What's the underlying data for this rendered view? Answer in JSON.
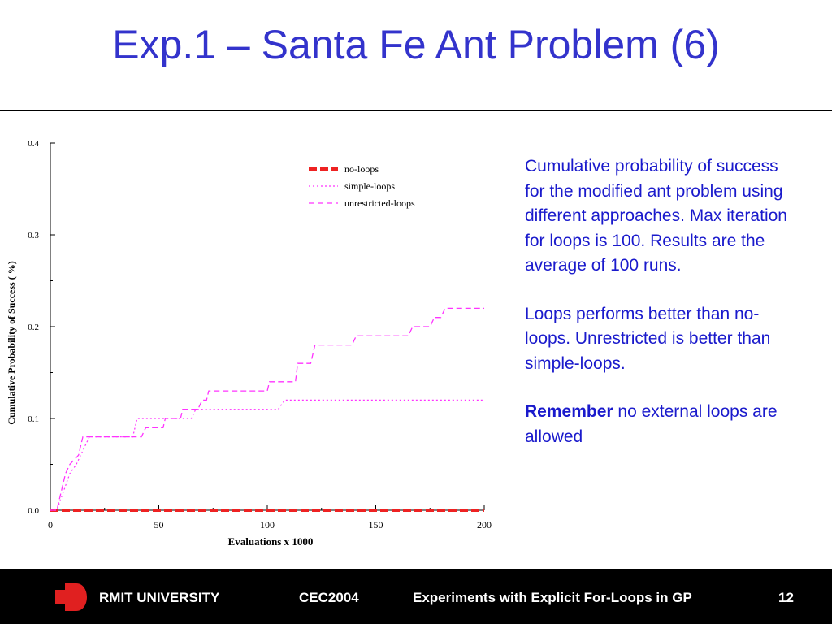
{
  "slide": {
    "title": "Exp.1 – Santa Fe Ant Problem (6)",
    "paragraphs": [
      "Cumulative probability  of success for the modified ant problem using different approaches. Max iteration for loops is 100. Results are the average of 100 runs.",
      "Loops performs better than no-loops. Unrestricted is better than simple-loops."
    ],
    "remember_word": "Remember",
    "remember_rest": " no external loops are allowed"
  },
  "footer": {
    "university": "RMIT UNIVERSITY",
    "conference": "CEC2004",
    "talk_title": "Experiments with Explicit For-Loops in GP",
    "page": "12"
  },
  "colors": {
    "title": "#3333cc",
    "body_text": "#1a1acc",
    "no_loops": "#ee2222",
    "loops": "#ff33ff",
    "logo": "#e02020"
  },
  "chart_data": {
    "type": "line",
    "xlabel": "Evaluations x 1000",
    "ylabel": "Cumulative Probability of Success ( %)",
    "xlim": [
      0,
      200
    ],
    "ylim": [
      0,
      0.4
    ],
    "x_ticks": [
      0,
      50,
      100,
      150,
      200
    ],
    "y_ticks": [
      0.0,
      0.1,
      0.2,
      0.3,
      0.4
    ],
    "x_tick_labels": [
      "0",
      "50",
      "100",
      "150",
      "200"
    ],
    "y_tick_labels": [
      "0.0",
      "0.1",
      "0.2",
      "0.3",
      "0.4"
    ],
    "legend_position": "top-right",
    "grid": false,
    "series": [
      {
        "name": "no-loops",
        "style": "thick-dashed",
        "color": "#ee2222",
        "points": [
          [
            0,
            0.0
          ],
          [
            200,
            0.0
          ]
        ]
      },
      {
        "name": "simple-loops",
        "style": "dotted",
        "color": "#ff33ff",
        "points": [
          [
            0,
            0.0
          ],
          [
            3,
            0.0
          ],
          [
            6,
            0.02
          ],
          [
            9,
            0.04
          ],
          [
            12,
            0.05
          ],
          [
            16,
            0.07
          ],
          [
            18,
            0.08
          ],
          [
            38,
            0.08
          ],
          [
            40,
            0.1
          ],
          [
            65,
            0.1
          ],
          [
            67,
            0.11
          ],
          [
            105,
            0.11
          ],
          [
            108,
            0.12
          ],
          [
            200,
            0.12
          ]
        ]
      },
      {
        "name": "unrestricted-loops",
        "style": "dashed",
        "color": "#ff33ff",
        "points": [
          [
            0,
            0.0
          ],
          [
            3,
            0.0
          ],
          [
            5,
            0.02
          ],
          [
            7,
            0.04
          ],
          [
            9,
            0.05
          ],
          [
            13,
            0.06
          ],
          [
            15,
            0.08
          ],
          [
            42,
            0.08
          ],
          [
            44,
            0.09
          ],
          [
            52,
            0.09
          ],
          [
            53,
            0.1
          ],
          [
            60,
            0.1
          ],
          [
            61,
            0.11
          ],
          [
            68,
            0.11
          ],
          [
            70,
            0.12
          ],
          [
            72,
            0.12
          ],
          [
            73,
            0.13
          ],
          [
            100,
            0.13
          ],
          [
            101,
            0.14
          ],
          [
            113,
            0.14
          ],
          [
            114,
            0.16
          ],
          [
            120,
            0.16
          ],
          [
            122,
            0.18
          ],
          [
            139,
            0.18
          ],
          [
            141,
            0.19
          ],
          [
            165,
            0.19
          ],
          [
            167,
            0.2
          ],
          [
            175,
            0.2
          ],
          [
            177,
            0.21
          ],
          [
            180,
            0.21
          ],
          [
            182,
            0.22
          ],
          [
            200,
            0.22
          ]
        ]
      }
    ]
  }
}
